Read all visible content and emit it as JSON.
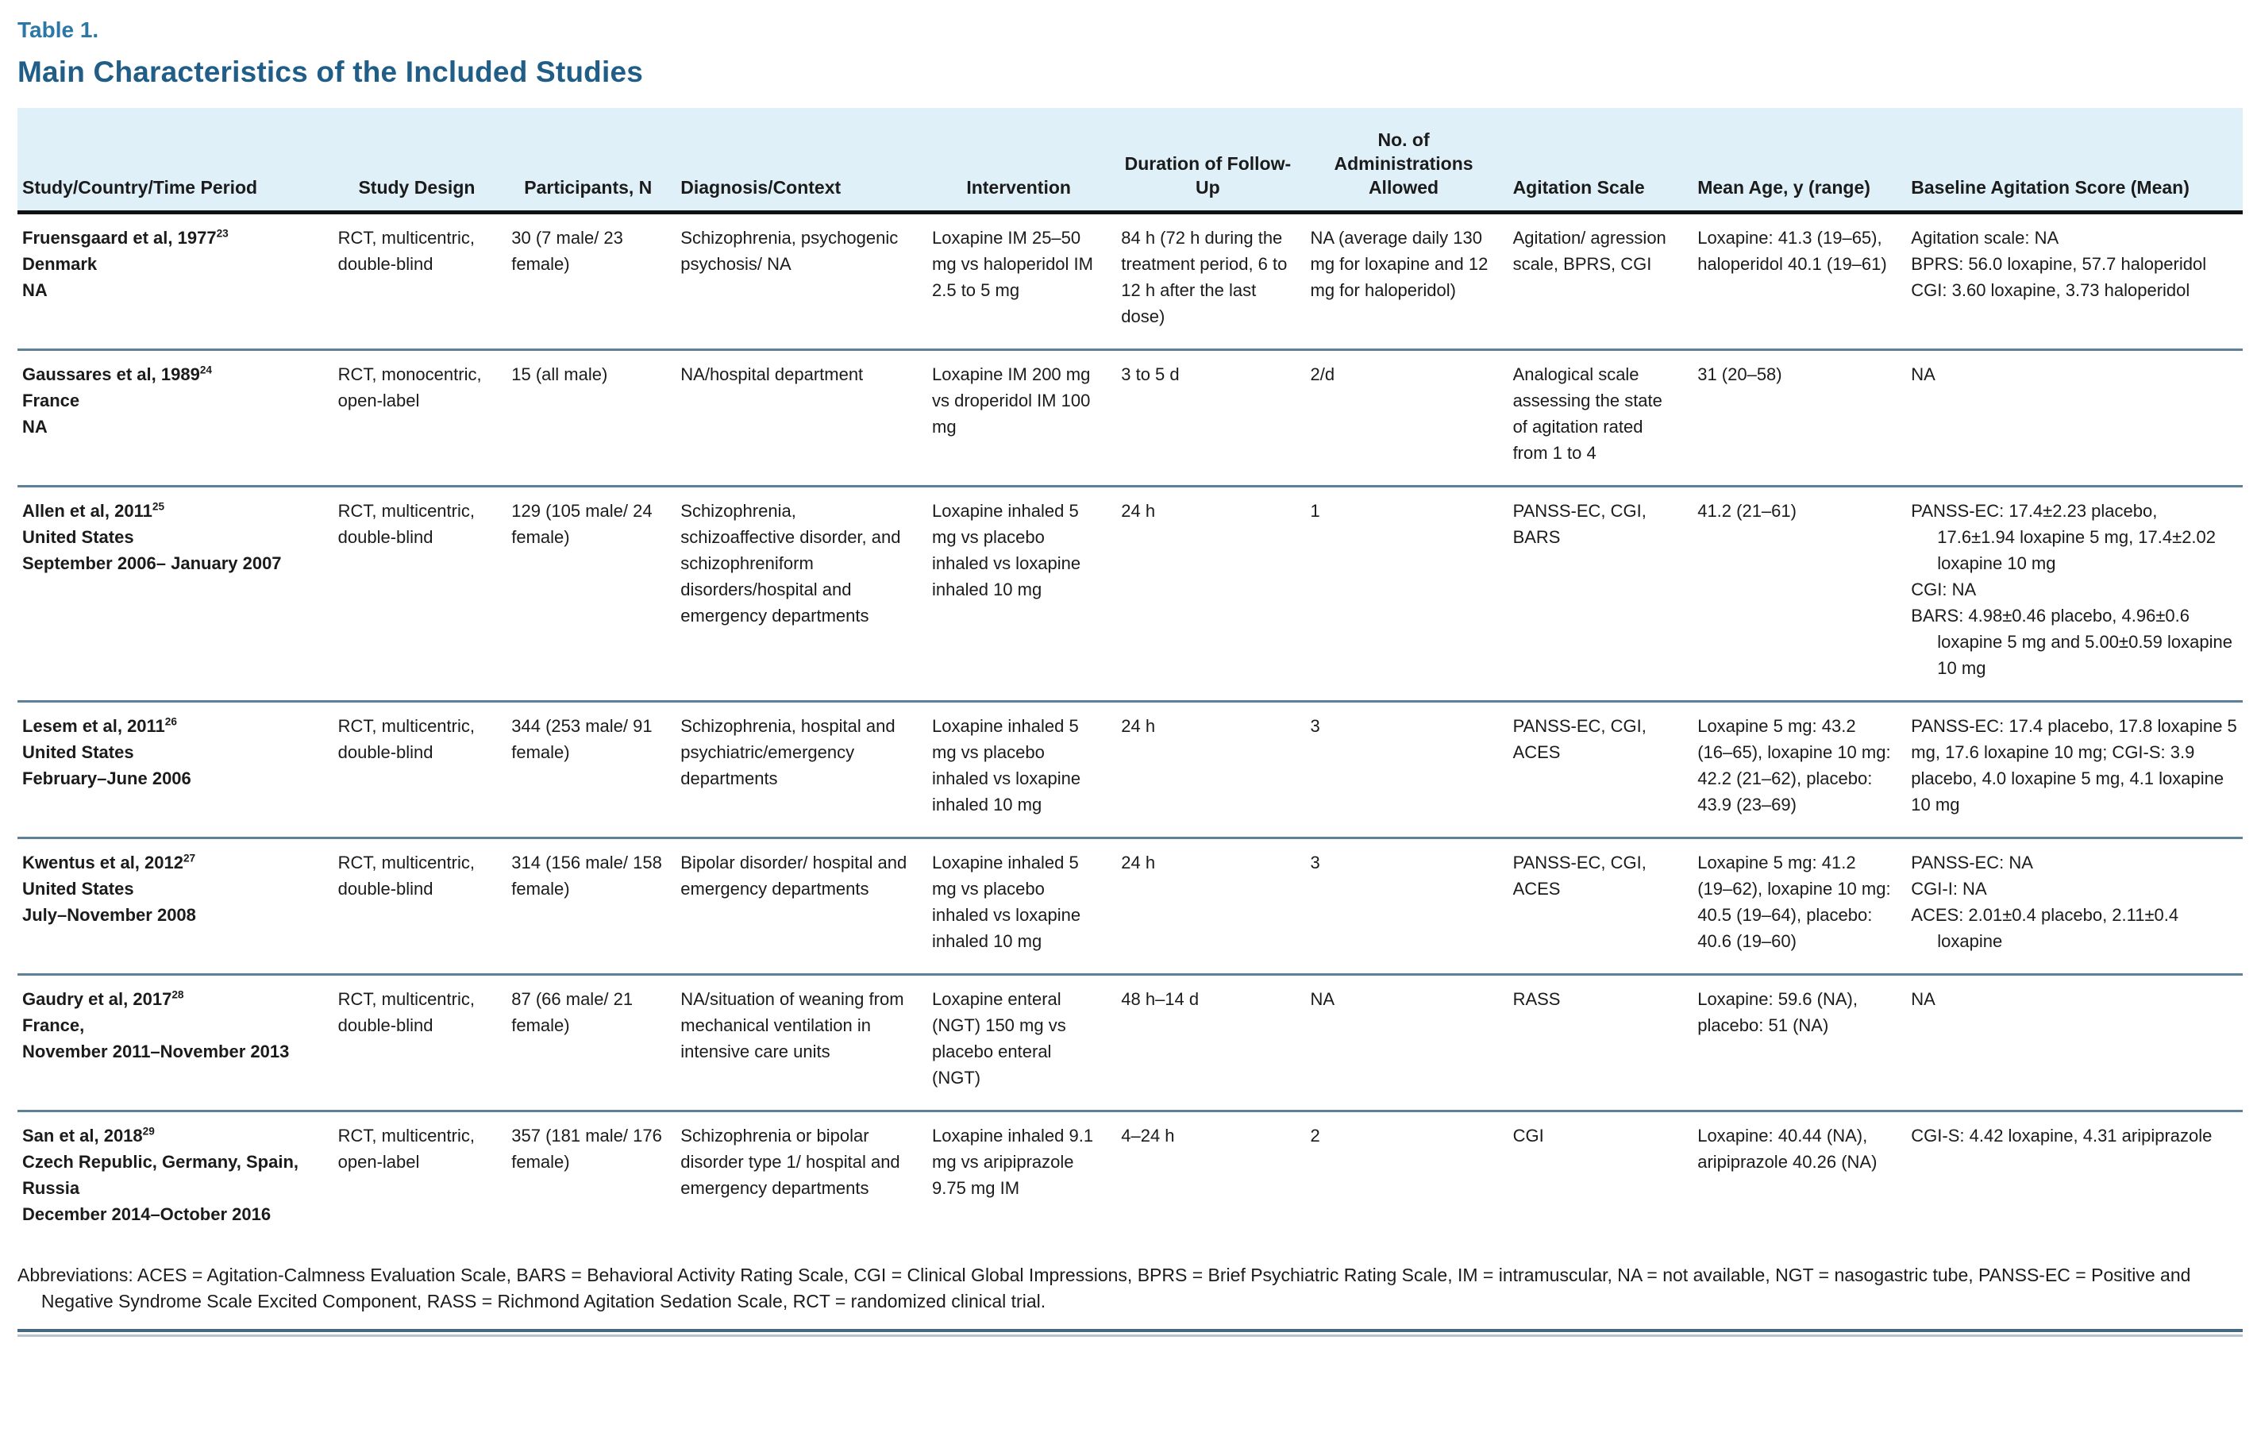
{
  "header": {
    "table_label": "Table 1.",
    "title": "Main Characteristics of the Included Studies"
  },
  "colors": {
    "accent_label": "#2b77a5",
    "accent_title": "#205e87",
    "header_bg": "#dff0f9",
    "divider": "#5d8199",
    "header_rule": "#111111",
    "bottom_rule_dark": "#47687e",
    "bottom_rule_light": "#b7c3cc",
    "text": "#1b1b1b"
  },
  "table": {
    "columns": [
      {
        "id": "study",
        "label": "Study/Country/Time Period",
        "align": "left"
      },
      {
        "id": "design",
        "label": "Study Design",
        "align": "center"
      },
      {
        "id": "participants",
        "label": "Participants, N",
        "align": "center"
      },
      {
        "id": "diagnosis",
        "label": "Diagnosis/Context",
        "align": "left"
      },
      {
        "id": "intervention",
        "label": "Intervention",
        "align": "center"
      },
      {
        "id": "duration",
        "label": "Duration of Follow-Up",
        "align": "center"
      },
      {
        "id": "admin",
        "label": "No. of Administrations Allowed",
        "align": "center"
      },
      {
        "id": "scale",
        "label": "Agitation Scale",
        "align": "left"
      },
      {
        "id": "age",
        "label": "Mean Age, y (range)",
        "align": "left"
      },
      {
        "id": "baseline",
        "label": "Baseline Agitation Score (Mean)",
        "align": "left"
      }
    ],
    "rows": [
      {
        "study": {
          "name": "Fruensgaard et al, 1977",
          "sup": "23",
          "lines": [
            "Denmark",
            "NA"
          ]
        },
        "design": "RCT, multicentric, double-blind",
        "participants": "30 (7 male/ 23 female)",
        "diagnosis": "Schizophrenia, psychogenic psychosis/ NA",
        "intervention": "Loxapine IM 25–50 mg vs haloperidol IM 2.5 to 5 mg",
        "duration": "84 h (72 h during the treatment period, 6 to 12 h after the last dose)",
        "admin": "NA (average daily 130 mg for loxapine and 12 mg for haloperidol)",
        "scale": "Agitation/ agression scale, BPRS, CGI",
        "age": "Loxapine: 41.3 (19–65), haloperidol 40.1 (19–61)",
        "baseline": [
          "Agitation scale: NA",
          "BPRS: 56.0 loxapine, 57.7 haloperidol",
          "CGI: 3.60 loxapine, 3.73 haloperidol"
        ]
      },
      {
        "study": {
          "name": "Gaussares et al, 1989",
          "sup": "24",
          "lines": [
            "France",
            "NA"
          ]
        },
        "design": "RCT, monocentric, open-label",
        "participants": "15 (all male)",
        "diagnosis": "NA/hospital department",
        "intervention": "Loxapine IM 200 mg vs droperidol IM 100 mg",
        "duration": "3 to 5 d",
        "admin": "2/d",
        "scale": "Analogical scale assessing the state of agitation rated from 1 to 4",
        "age": "31 (20–58)",
        "baseline": "NA"
      },
      {
        "study": {
          "name": "Allen et al, 2011",
          "sup": "25",
          "lines": [
            "United States",
            "September 2006– January 2007"
          ]
        },
        "design": "RCT, multicentric, double-blind",
        "participants": "129 (105 male/ 24 female)",
        "diagnosis": "Schizophrenia, schizoaffective disorder, and schizophreniform disorders/hospital and emergency departments",
        "intervention": "Loxapine inhaled 5 mg vs placebo inhaled vs loxapine inhaled 10 mg",
        "duration": "24 h",
        "admin": "1",
        "scale": "PANSS-EC, CGI, BARS",
        "age": "41.2 (21–61)",
        "baseline": [
          "PANSS-EC: 17.4±2.23 placebo, 17.6±1.94 loxapine 5 mg, 17.4±2.02 loxapine 10 mg",
          "CGI: NA",
          "BARS: 4.98±0.46 placebo, 4.96±0.6 loxapine 5 mg and 5.00±0.59 loxapine 10 mg"
        ]
      },
      {
        "study": {
          "name": "Lesem et al, 2011",
          "sup": "26",
          "lines": [
            "United States",
            "February–June 2006"
          ]
        },
        "design": "RCT, multicentric, double-blind",
        "participants": "344 (253 male/ 91 female)",
        "diagnosis": "Schizophrenia, hospital and psychiatric/emergency departments",
        "intervention": "Loxapine inhaled 5 mg vs placebo inhaled vs loxapine inhaled 10 mg",
        "duration": "24 h",
        "admin": "3",
        "scale": "PANSS-EC, CGI, ACES",
        "age": "Loxapine 5 mg: 43.2 (16–65), loxapine 10 mg: 42.2 (21–62), placebo: 43.9 (23–69)",
        "baseline": "PANSS-EC: 17.4 placebo, 17.8 loxapine 5 mg, 17.6 loxapine 10 mg; CGI-S: 3.9 placebo, 4.0 loxapine 5 mg, 4.1 loxapine 10 mg"
      },
      {
        "study": {
          "name": "Kwentus et al, 2012",
          "sup": "27",
          "lines": [
            "United States",
            "July–November 2008"
          ]
        },
        "design": "RCT, multicentric, double-blind",
        "participants": "314 (156 male/ 158 female)",
        "diagnosis": "Bipolar disorder/ hospital and emergency departments",
        "intervention": "Loxapine inhaled 5 mg vs placebo inhaled vs loxapine inhaled 10 mg",
        "duration": "24 h",
        "admin": "3",
        "scale": "PANSS-EC, CGI, ACES",
        "age": "Loxapine 5 mg: 41.2 (19–62), loxapine 10 mg: 40.5 (19–64), placebo: 40.6 (19–60)",
        "baseline": [
          "PANSS-EC: NA",
          "CGI-I: NA",
          "ACES: 2.01±0.4 placebo, 2.11±0.4 loxapine"
        ]
      },
      {
        "study": {
          "name": "Gaudry et al, 2017",
          "sup": "28",
          "lines": [
            "France,",
            "November 2011–November 2013"
          ]
        },
        "design": "RCT, multicentric, double-blind",
        "participants": "87 (66 male/ 21 female)",
        "diagnosis": "NA/situation of weaning from mechanical ventilation in intensive care units",
        "intervention": "Loxapine enteral (NGT) 150 mg vs placebo enteral (NGT)",
        "duration": "48 h–14 d",
        "admin": "NA",
        "scale": "RASS",
        "age": "Loxapine: 59.6 (NA), placebo: 51 (NA)",
        "baseline": "NA"
      },
      {
        "study": {
          "name": "San et al, 2018",
          "sup": "29",
          "lines": [
            "Czech Republic, Germany, Spain, Russia",
            "December 2014–October 2016"
          ]
        },
        "design": "RCT, multicentric, open-label",
        "participants": "357 (181 male/ 176 female)",
        "diagnosis": "Schizophrenia or bipolar disorder type 1/ hospital and emergency departments",
        "intervention": "Loxapine inhaled 9.1 mg vs aripiprazole 9.75 mg IM",
        "duration": "4–24 h",
        "admin": "2",
        "scale": "CGI",
        "age": "Loxapine: 40.44 (NA), aripiprazole 40.26 (NA)",
        "baseline": "CGI-S: 4.42 loxapine, 4.31 aripiprazole"
      }
    ]
  },
  "footnote": "Abbreviations: ACES = Agitation-Calmness Evaluation Scale, BARS = Behavioral Activity Rating Scale, CGI = Clinical Global Impressions, BPRS = Brief Psychiatric Rating Scale, IM = intramuscular, NA = not available, NGT = nasogastric tube, PANSS-EC = Positive and Negative Syndrome Scale Excited Component, RASS = Richmond Agitation Sedation Scale, RCT = randomized clinical trial."
}
